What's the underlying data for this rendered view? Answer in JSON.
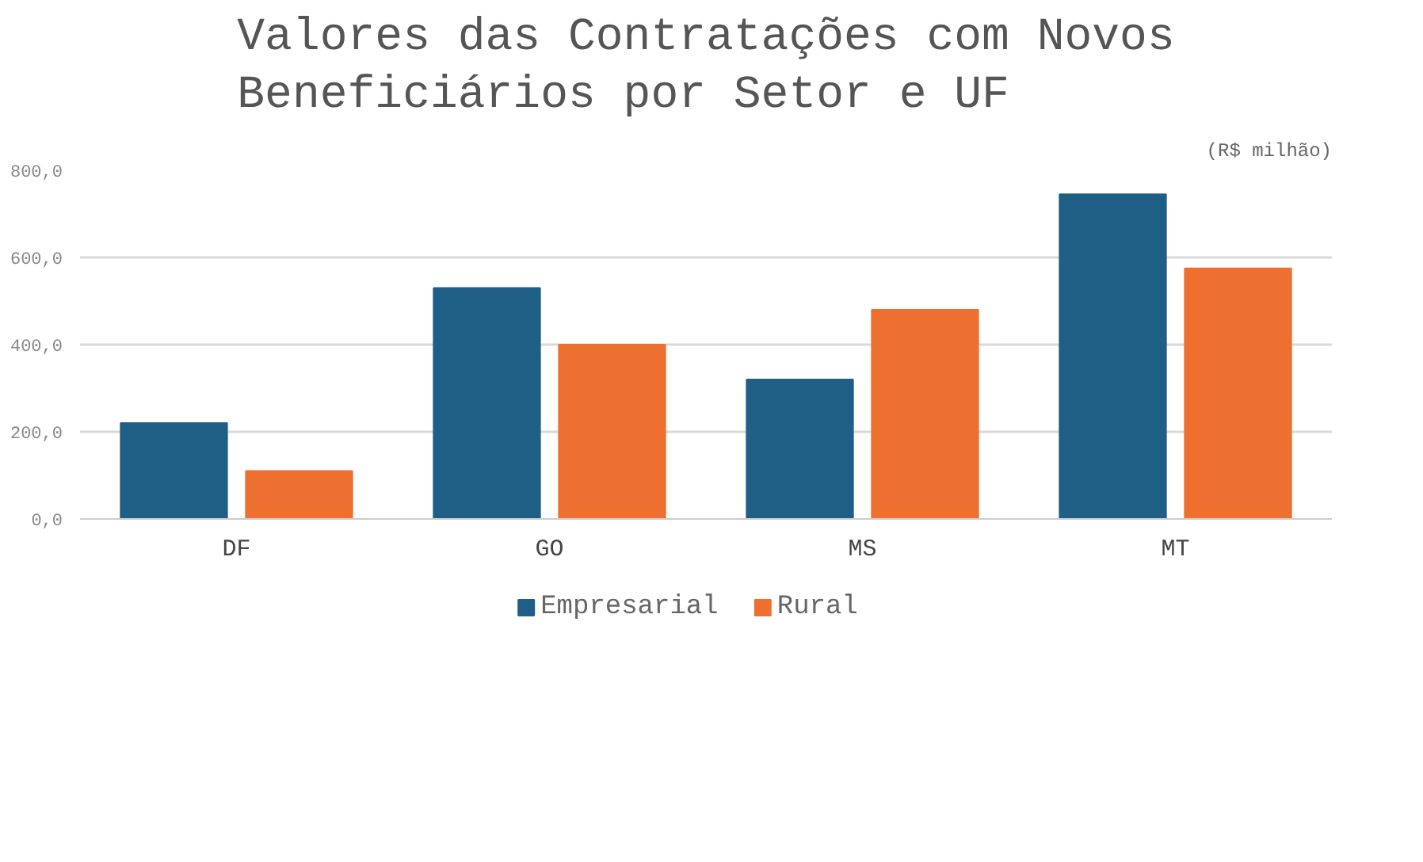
{
  "chart_data": {
    "type": "bar",
    "title": "Valores das Contratações com Novos Beneficiários por Setor e UF",
    "subtitle": "(R$ milhão)",
    "categories": [
      "DF",
      "GO",
      "MS",
      "MT"
    ],
    "series": [
      {
        "name": "Empresarial",
        "color": "#1f5f86",
        "values": [
          220,
          530,
          320,
          745
        ]
      },
      {
        "name": "Rural",
        "color": "#ed7031",
        "values": [
          110,
          400,
          480,
          575
        ]
      }
    ],
    "ylim": [
      0,
      800
    ],
    "yticks": [
      {
        "value": 0,
        "label": "0,0"
      },
      {
        "value": 200,
        "label": "200,0"
      },
      {
        "value": 400,
        "label": "400,0"
      },
      {
        "value": 600,
        "label": "600,0"
      },
      {
        "value": 800,
        "label": "800,0"
      }
    ],
    "grid": "y",
    "legend": "bottom"
  }
}
